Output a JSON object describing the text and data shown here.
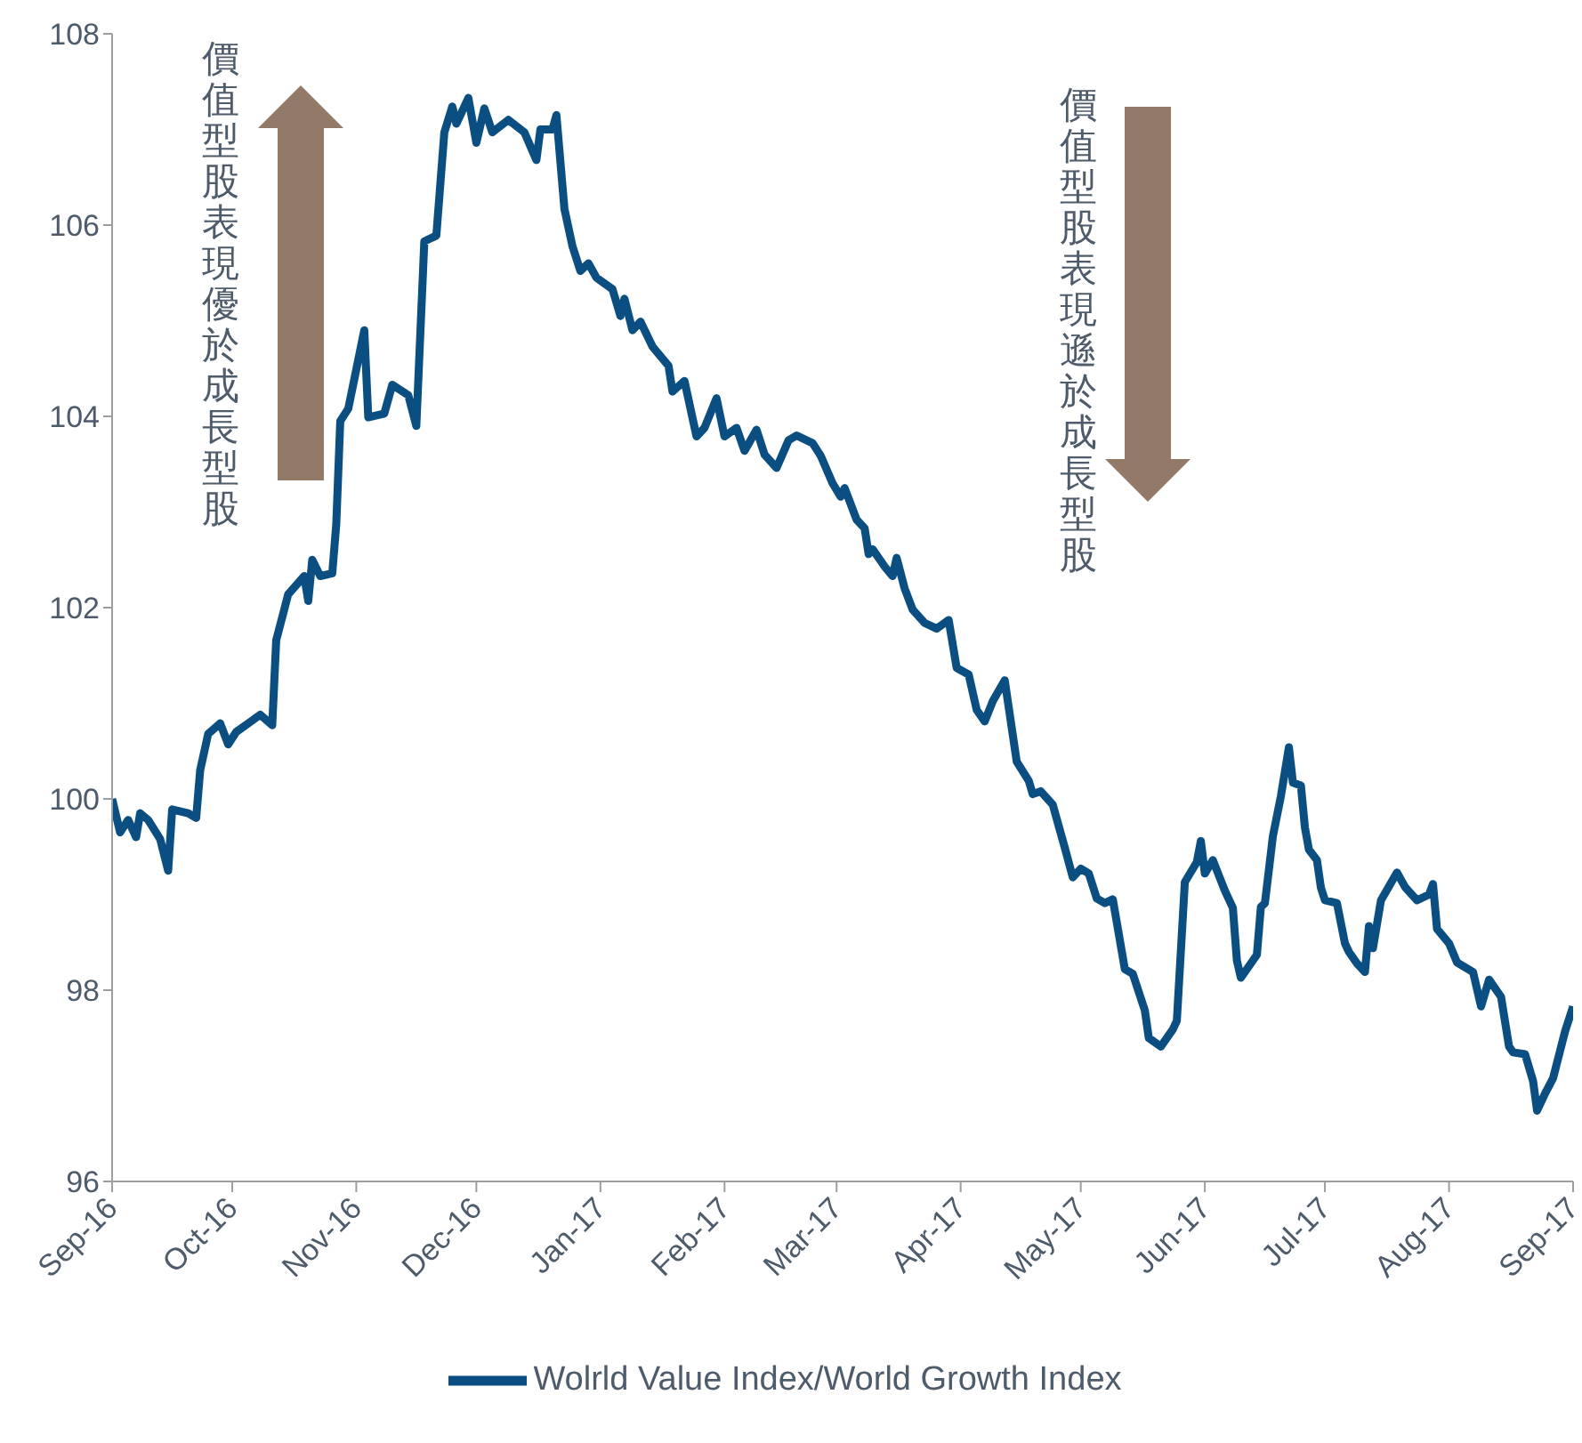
{
  "chart_data": {
    "type": "line",
    "annotations": [
      "價值型股表現優於成長型股",
      "價值型股表現遜於成長型股"
    ],
    "x": [
      "2016-09-01",
      "2016-09-03",
      "2016-09-05",
      "2016-09-07",
      "2016-09-08",
      "2016-09-10",
      "2016-09-13",
      "2016-09-15",
      "2016-09-16",
      "2016-09-20",
      "2016-09-22",
      "2016-09-23",
      "2016-09-25",
      "2016-09-28",
      "2016-09-30",
      "2016-10-02",
      "2016-10-05",
      "2016-10-08",
      "2016-10-11",
      "2016-10-12",
      "2016-10-15",
      "2016-10-19",
      "2016-10-20",
      "2016-10-21",
      "2016-10-23",
      "2016-10-26",
      "2016-10-27",
      "2016-10-28",
      "2016-10-30",
      "2016-11-03",
      "2016-11-04",
      "2016-11-08",
      "2016-11-10",
      "2016-11-14",
      "2016-11-16",
      "2016-11-18",
      "2016-11-21",
      "2016-11-23",
      "2016-11-25",
      "2016-11-26",
      "2016-11-29",
      "2016-12-01",
      "2016-12-03",
      "2016-12-05",
      "2016-12-09",
      "2016-12-13",
      "2016-12-16",
      "2016-12-17",
      "2016-12-20",
      "2016-12-21",
      "2016-12-23",
      "2016-12-25",
      "2016-12-27",
      "2016-12-29",
      "2016-12-31",
      "2017-01-04",
      "2017-01-06",
      "2017-01-07",
      "2017-01-09",
      "2017-01-11",
      "2017-01-14",
      "2017-01-18",
      "2017-01-19",
      "2017-01-22",
      "2017-01-25",
      "2017-01-27",
      "2017-01-30",
      "2017-02-01",
      "2017-02-04",
      "2017-02-06",
      "2017-02-09",
      "2017-02-11",
      "2017-02-14",
      "2017-02-17",
      "2017-02-19",
      "2017-02-23",
      "2017-02-25",
      "2017-02-28",
      "2017-03-02",
      "2017-03-03",
      "2017-03-06",
      "2017-03-08",
      "2017-03-09",
      "2017-03-10",
      "2017-03-13",
      "2017-03-15",
      "2017-03-16",
      "2017-03-18",
      "2017-03-20",
      "2017-03-23",
      "2017-03-26",
      "2017-03-29",
      "2017-03-31",
      "2017-04-03",
      "2017-04-05",
      "2017-04-07",
      "2017-04-09",
      "2017-04-12",
      "2017-04-15",
      "2017-04-18",
      "2017-04-19",
      "2017-04-21",
      "2017-04-24",
      "2017-04-27",
      "2017-04-29",
      "2017-05-01",
      "2017-05-03",
      "2017-05-05",
      "2017-05-07",
      "2017-05-09",
      "2017-05-10",
      "2017-05-12",
      "2017-05-14",
      "2017-05-17",
      "2017-05-18",
      "2017-05-21",
      "2017-05-24",
      "2017-05-25",
      "2017-05-27",
      "2017-05-30",
      "2017-05-31",
      "2017-06-01",
      "2017-06-03",
      "2017-06-06",
      "2017-06-08",
      "2017-06-09",
      "2017-06-10",
      "2017-06-14",
      "2017-06-15",
      "2017-06-16",
      "2017-06-18",
      "2017-06-20",
      "2017-06-22",
      "2017-06-23",
      "2017-06-25",
      "2017-06-26",
      "2017-06-27",
      "2017-06-29",
      "2017-06-30",
      "2017-07-01",
      "2017-07-04",
      "2017-07-06",
      "2017-07-07",
      "2017-07-09",
      "2017-07-11",
      "2017-07-12",
      "2017-07-13",
      "2017-07-15",
      "2017-07-19",
      "2017-07-21",
      "2017-07-24",
      "2017-07-27",
      "2017-07-28",
      "2017-07-29",
      "2017-08-01",
      "2017-08-03",
      "2017-08-07",
      "2017-08-09",
      "2017-08-11",
      "2017-08-14",
      "2017-08-16",
      "2017-08-17",
      "2017-08-20",
      "2017-08-22",
      "2017-08-23",
      "2017-08-25",
      "2017-08-27",
      "2017-08-30",
      "2017-09-01"
    ],
    "series": [
      {
        "name": "Wolrld Value Index/World Growth Index",
        "color": "#0b4f82",
        "values": [
          100.0,
          99.65,
          99.78,
          99.6,
          99.85,
          99.78,
          99.58,
          99.25,
          99.89,
          99.85,
          99.8,
          100.3,
          100.68,
          100.79,
          100.57,
          100.7,
          100.79,
          100.88,
          100.77,
          101.66,
          102.14,
          102.33,
          102.07,
          102.5,
          102.33,
          102.36,
          102.87,
          103.95,
          104.08,
          104.9,
          103.99,
          104.03,
          104.33,
          104.22,
          103.9,
          105.83,
          105.89,
          106.97,
          107.24,
          107.06,
          107.33,
          106.86,
          107.22,
          106.97,
          107.1,
          106.97,
          106.68,
          107.0,
          107.0,
          107.15,
          106.17,
          105.78,
          105.52,
          105.6,
          105.45,
          105.33,
          105.05,
          105.23,
          104.9,
          104.99,
          104.73,
          104.53,
          104.26,
          104.37,
          103.79,
          103.88,
          104.19,
          103.79,
          103.88,
          103.64,
          103.86,
          103.6,
          103.46,
          103.75,
          103.8,
          103.72,
          103.59,
          103.3,
          103.16,
          103.25,
          102.92,
          102.83,
          102.56,
          102.61,
          102.43,
          102.33,
          102.52,
          102.2,
          101.98,
          101.84,
          101.78,
          101.87,
          101.37,
          101.3,
          100.93,
          100.81,
          101.02,
          101.24,
          100.39,
          100.19,
          100.05,
          100.08,
          99.94,
          99.49,
          99.18,
          99.27,
          99.22,
          98.96,
          98.91,
          98.95,
          98.71,
          98.22,
          98.17,
          97.79,
          97.5,
          97.41,
          97.59,
          97.68,
          99.13,
          99.34,
          99.56,
          99.22,
          99.36,
          99.04,
          98.86,
          98.31,
          98.13,
          98.37,
          98.87,
          98.91,
          99.61,
          100.03,
          100.54,
          100.17,
          100.14,
          99.7,
          99.47,
          99.36,
          99.07,
          98.94,
          98.91,
          98.49,
          98.4,
          98.28,
          98.19,
          98.67,
          98.44,
          98.94,
          99.23,
          99.08,
          98.94,
          99.0,
          99.11,
          98.64,
          98.49,
          98.29,
          98.19,
          97.83,
          98.11,
          97.93,
          97.41,
          97.35,
          97.33,
          97.05,
          96.74,
          96.92,
          97.08,
          97.57,
          97.83
        ]
      }
    ],
    "xlim": [
      "2016-09-01",
      "2017-09-01"
    ],
    "xticks": [
      {
        "value": "2016-09-01",
        "label": "Sep-16"
      },
      {
        "value": "2016-10-01",
        "label": "Oct-16"
      },
      {
        "value": "2016-11-01",
        "label": "Nov-16"
      },
      {
        "value": "2016-12-01",
        "label": "Dec-16"
      },
      {
        "value": "2017-01-01",
        "label": "Jan-17"
      },
      {
        "value": "2017-02-01",
        "label": "Feb-17"
      },
      {
        "value": "2017-03-01",
        "label": "Mar-17"
      },
      {
        "value": "2017-04-01",
        "label": "Apr-17"
      },
      {
        "value": "2017-05-01",
        "label": "May-17"
      },
      {
        "value": "2017-06-01",
        "label": "Jun-17"
      },
      {
        "value": "2017-07-01",
        "label": "Jul-17"
      },
      {
        "value": "2017-08-01",
        "label": "Aug-17"
      },
      {
        "value": "2017-09-01",
        "label": "Sep-17"
      }
    ],
    "ylim": [
      96,
      108
    ],
    "yticks": [
      96,
      98,
      100,
      102,
      104,
      106,
      108
    ],
    "grid": false,
    "legend": "bottom",
    "marker": "none",
    "line_style": "solid"
  }
}
